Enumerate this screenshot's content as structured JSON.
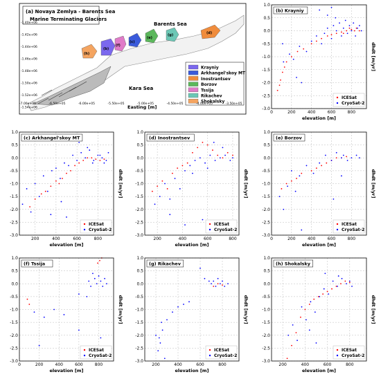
{
  "map": {
    "title_line1": "(a) Novaya Zemlya - Barents Sea",
    "title_line2": "Marine Terminating Glaciers",
    "sea_north": "Barents Sea",
    "sea_south": "Kara Sea",
    "xlabel": "Easting [m]",
    "ylabel": "Northing [m]",
    "xticks": [
      "-7.00e+05",
      "-6.50e+05",
      "-6.00e+05",
      "-5.50e+05",
      "-5.00e+05",
      "-4.50e+05",
      "-4.00e+05",
      "-3.50e+05"
    ],
    "yticks": [
      "-1.40e+06",
      "-1.42e+06",
      "-1.44e+06",
      "-1.46e+06",
      "-1.48e+06",
      "-1.50e+06",
      "-1.52e+06",
      "-1.54e+06"
    ],
    "legend": [
      {
        "name": "Krayniy",
        "color": "#7b68ee"
      },
      {
        "name": "Arkhangel'skoy MT",
        "color": "#3b5bdb"
      },
      {
        "name": "Inostrantsev",
        "color": "#f08c3c"
      },
      {
        "name": "Borzov",
        "color": "#5cb85c"
      },
      {
        "name": "Tssija",
        "color": "#e07bc8"
      },
      {
        "name": "Rikachev",
        "color": "#6cc7b5"
      },
      {
        "name": "Shokalsky",
        "color": "#f4a460"
      }
    ],
    "glacier_labels": [
      "(b)",
      "(c)",
      "(d)",
      "(e)",
      "(f)",
      "(g)",
      "(h)"
    ]
  },
  "chart_data": [
    {
      "type": "scatter",
      "title": "(b) Krayniy",
      "xlabel": "elevation [m]",
      "ylabel": "dhdt [m/yr]",
      "xlim": [
        0,
        950
      ],
      "ylim": [
        -3,
        1
      ],
      "xticks": [
        0,
        200,
        400,
        600,
        800
      ],
      "yticks": [
        -3.0,
        -2.5,
        -2.0,
        -1.5,
        -1.0,
        -0.5,
        0.0,
        0.5,
        1.0
      ],
      "series": [
        {
          "name": "ICESat",
          "color": "#ff0000"
        },
        {
          "name": "CryoSat-2",
          "color": "#0000ff"
        }
      ],
      "legend": "lower right",
      "grid": true,
      "icesat": [
        [
          60,
          -2.3
        ],
        [
          80,
          -2.1
        ],
        [
          90,
          -1.9
        ],
        [
          110,
          -1.6
        ],
        [
          130,
          -1.4
        ],
        [
          150,
          -1.2
        ],
        [
          200,
          -1.0
        ],
        [
          260,
          -0.8
        ],
        [
          320,
          -0.7
        ],
        [
          400,
          -0.5
        ],
        [
          450,
          -0.4
        ],
        [
          500,
          -0.3
        ],
        [
          560,
          -0.2
        ],
        [
          600,
          -0.15
        ],
        [
          650,
          -0.1
        ],
        [
          700,
          -0.05
        ],
        [
          750,
          0.0
        ],
        [
          800,
          0.05
        ],
        [
          850,
          0.1
        ],
        [
          880,
          0.0
        ],
        [
          720,
          -0.1
        ],
        [
          780,
          0.1
        ],
        [
          830,
          0.0
        ]
      ],
      "cryosat": [
        [
          120,
          -1.2
        ],
        [
          180,
          -0.9
        ],
        [
          220,
          -1.1
        ],
        [
          280,
          -0.6
        ],
        [
          350,
          -0.8
        ],
        [
          400,
          -0.4
        ],
        [
          450,
          -0.2
        ],
        [
          500,
          -0.5
        ],
        [
          530,
          -0.1
        ],
        [
          560,
          0.1
        ],
        [
          600,
          -0.3
        ],
        [
          620,
          0.2
        ],
        [
          650,
          0.0
        ],
        [
          680,
          0.3
        ],
        [
          700,
          -0.2
        ],
        [
          720,
          0.1
        ],
        [
          740,
          0.4
        ],
        [
          760,
          -0.1
        ],
        [
          780,
          0.2
        ],
        [
          800,
          0.0
        ],
        [
          820,
          0.3
        ],
        [
          840,
          -0.2
        ],
        [
          860,
          0.1
        ],
        [
          880,
          0.2
        ],
        [
          900,
          0.0
        ],
        [
          640,
          0.5
        ],
        [
          560,
          0.6
        ],
        [
          300,
          -2.0
        ],
        [
          250,
          -1.8
        ],
        [
          110,
          -0.5
        ],
        [
          480,
          0.8
        ],
        [
          600,
          0.9
        ]
      ]
    },
    {
      "type": "scatter",
      "title": "(c) Arkhangel'skoy MT",
      "xlabel": "elevation [m]",
      "ylabel": "dhdt [m/yr]",
      "xlim": [
        50,
        950
      ],
      "ylim": [
        -3,
        1
      ],
      "xticks": [
        200,
        400,
        600,
        800
      ],
      "yticks": [
        -3.0,
        -2.5,
        -2.0,
        -1.5,
        -1.0,
        -0.5,
        0.0,
        0.5,
        1.0
      ],
      "series": [
        {
          "name": "ICESat",
          "color": "#ff0000"
        },
        {
          "name": "CryoSat-2",
          "color": "#0000ff"
        }
      ],
      "legend": "lower right",
      "grid": true,
      "icesat": [
        [
          150,
          -1.9
        ],
        [
          200,
          -1.6
        ],
        [
          260,
          -1.4
        ],
        [
          300,
          -1.3
        ],
        [
          350,
          -1.1
        ],
        [
          400,
          -0.9
        ],
        [
          430,
          -1.0
        ],
        [
          460,
          -0.8
        ],
        [
          500,
          -0.6
        ],
        [
          540,
          -0.5
        ],
        [
          580,
          -0.3
        ],
        [
          620,
          -0.2
        ],
        [
          660,
          -0.1
        ],
        [
          700,
          0.0
        ],
        [
          740,
          0.0
        ],
        [
          780,
          -0.05
        ],
        [
          820,
          -0.1
        ],
        [
          860,
          -0.05
        ]
      ],
      "cryosat": [
        [
          80,
          -1.8
        ],
        [
          120,
          -1.2
        ],
        [
          160,
          -2.1
        ],
        [
          200,
          -1.0
        ],
        [
          240,
          -1.5
        ],
        [
          280,
          -0.7
        ],
        [
          320,
          -1.3
        ],
        [
          360,
          -0.5
        ],
        [
          400,
          -0.4
        ],
        [
          440,
          -0.8
        ],
        [
          480,
          -0.2
        ],
        [
          520,
          -0.3
        ],
        [
          560,
          0.1
        ],
        [
          600,
          -0.1
        ],
        [
          640,
          0.2
        ],
        [
          680,
          0.0
        ],
        [
          720,
          0.3
        ],
        [
          760,
          -0.1
        ],
        [
          800,
          0.1
        ],
        [
          840,
          0.0
        ],
        [
          880,
          -0.1
        ],
        [
          900,
          0.2
        ],
        [
          620,
          0.6
        ],
        [
          700,
          0.4
        ],
        [
          500,
          -2.3
        ],
        [
          450,
          -1.7
        ],
        [
          350,
          -2.2
        ],
        [
          750,
          -0.2
        ],
        [
          820,
          0.1
        ],
        [
          860,
          -0.2
        ]
      ]
    },
    {
      "type": "scatter",
      "title": "(d) Inostrantsev",
      "xlabel": "elevation [m]",
      "ylabel": "dhdt [m/yr]",
      "xlim": [
        100,
        850
      ],
      "ylim": [
        -3,
        1
      ],
      "xticks": [
        200,
        400,
        600,
        800
      ],
      "yticks": [
        -3.0,
        -2.5,
        -2.0,
        -1.5,
        -1.0,
        -0.5,
        0.0,
        0.5,
        1.0
      ],
      "series": [
        {
          "name": "ICESat",
          "color": "#ff0000"
        },
        {
          "name": "CryoSat-2",
          "color": "#0000ff"
        }
      ],
      "legend": "lower right",
      "grid": true,
      "icesat": [
        [
          160,
          -1.3
        ],
        [
          200,
          -1.1
        ],
        [
          240,
          -0.9
        ],
        [
          280,
          -1.2
        ],
        [
          320,
          -0.6
        ],
        [
          360,
          -0.4
        ],
        [
          400,
          -0.3
        ],
        [
          440,
          -0.2
        ],
        [
          480,
          0.2
        ],
        [
          520,
          0.4
        ],
        [
          560,
          0.6
        ],
        [
          600,
          0.5
        ],
        [
          640,
          0.3
        ],
        [
          680,
          0.1
        ],
        [
          720,
          0.0
        ],
        [
          760,
          0.2
        ],
        [
          800,
          0.1
        ]
      ],
      "cryosat": [
        [
          180,
          -1.8
        ],
        [
          220,
          -1.5
        ],
        [
          260,
          -1.0
        ],
        [
          300,
          -1.6
        ],
        [
          340,
          -0.8
        ],
        [
          380,
          -1.2
        ],
        [
          420,
          -0.5
        ],
        [
          460,
          -0.3
        ],
        [
          500,
          -0.1
        ],
        [
          540,
          0.0
        ],
        [
          580,
          -0.2
        ],
        [
          620,
          0.1
        ],
        [
          660,
          -0.1
        ],
        [
          700,
          0.0
        ],
        [
          740,
          0.1
        ],
        [
          780,
          -0.1
        ],
        [
          800,
          0.0
        ],
        [
          560,
          -2.4
        ],
        [
          420,
          -2.6
        ],
        [
          300,
          -2.2
        ],
        [
          650,
          0.6
        ],
        [
          720,
          0.4
        ],
        [
          480,
          -0.6
        ],
        [
          600,
          -0.4
        ]
      ]
    },
    {
      "type": "scatter",
      "title": "(e) Borzov",
      "xlabel": "elevation [m]",
      "ylabel": "dhdt [m/yr]",
      "xlim": [
        0,
        950
      ],
      "ylim": [
        -3,
        1
      ],
      "xticks": [
        0,
        200,
        400,
        600,
        800
      ],
      "yticks": [
        -3.0,
        -2.5,
        -2.0,
        -1.5,
        -1.0,
        -0.5,
        0.0,
        0.5,
        1.0
      ],
      "series": [
        {
          "name": "ICESat",
          "color": "#ff0000"
        },
        {
          "name": "CryoSat-2",
          "color": "#0000ff"
        }
      ],
      "legend": "lower right",
      "grid": true,
      "icesat": [
        [
          100,
          -1.2
        ],
        [
          150,
          -1.0
        ],
        [
          200,
          -0.9
        ],
        [
          250,
          -0.8
        ],
        [
          300,
          -0.6
        ],
        [
          400,
          -0.5
        ],
        [
          450,
          -0.4
        ],
        [
          500,
          -0.3
        ],
        [
          550,
          -0.2
        ],
        [
          600,
          -0.1
        ],
        [
          650,
          0.0
        ],
        [
          700,
          0.0
        ],
        [
          750,
          0.05
        ]
      ],
      "cryosat": [
        [
          80,
          -1.5
        ],
        [
          120,
          -2.0
        ],
        [
          160,
          -1.1
        ],
        [
          200,
          -0.5
        ],
        [
          240,
          -1.3
        ],
        [
          280,
          -0.7
        ],
        [
          350,
          -0.3
        ],
        [
          420,
          -0.6
        ],
        [
          480,
          -0.2
        ],
        [
          540,
          0.1
        ],
        [
          600,
          -0.1
        ],
        [
          650,
          0.2
        ],
        [
          700,
          0.0
        ],
        [
          720,
          0.1
        ],
        [
          760,
          -0.1
        ],
        [
          800,
          0.0
        ],
        [
          850,
          0.1
        ],
        [
          880,
          0.0
        ],
        [
          620,
          -1.6
        ],
        [
          300,
          -2.8
        ],
        [
          700,
          -0.7
        ]
      ]
    },
    {
      "type": "scatter",
      "title": "(f) Tssija",
      "xlabel": "elevation [m]",
      "ylabel": "dhdt [m/yr]",
      "xlim": [
        0,
        950
      ],
      "ylim": [
        -3,
        1
      ],
      "xticks": [
        0,
        200,
        400,
        600,
        800
      ],
      "yticks": [
        -3.0,
        -2.5,
        -2.0,
        -1.5,
        -1.0,
        -0.5,
        0.0,
        0.5,
        1.0
      ],
      "series": [
        {
          "name": "ICESat",
          "color": "#ff0000"
        },
        {
          "name": "CryoSat-2",
          "color": "#0000ff"
        }
      ],
      "legend": "lower right",
      "grid": true,
      "icesat": [
        [
          80,
          -0.6
        ],
        [
          100,
          -0.8
        ],
        [
          790,
          0.8
        ],
        [
          810,
          0.9
        ],
        [
          830,
          1.0
        ]
      ],
      "cryosat": [
        [
          150,
          -1.1
        ],
        [
          250,
          -1.3
        ],
        [
          350,
          -1.0
        ],
        [
          450,
          -1.2
        ],
        [
          600,
          -0.4
        ],
        [
          700,
          0.1
        ],
        [
          720,
          -0.1
        ],
        [
          760,
          0.2
        ],
        [
          780,
          0.0
        ],
        [
          800,
          0.3
        ],
        [
          820,
          0.1
        ],
        [
          840,
          -0.1
        ],
        [
          860,
          0.2
        ],
        [
          880,
          0.0
        ],
        [
          740,
          0.4
        ],
        [
          680,
          -0.5
        ],
        [
          820,
          -2.1
        ],
        [
          200,
          -2.4
        ],
        [
          600,
          -1.8
        ]
      ]
    },
    {
      "type": "scatter",
      "title": "(g) Rikachev",
      "xlabel": "elevation [m]",
      "ylabel": "dhdt [m/yr]",
      "xlim": [
        100,
        950
      ],
      "ylim": [
        -3,
        1
      ],
      "xticks": [
        200,
        400,
        600,
        800
      ],
      "yticks": [
        -3.0,
        -2.5,
        -2.0,
        -1.5,
        -1.0,
        -0.5,
        0.0,
        0.5,
        1.0
      ],
      "series": [
        {
          "name": "ICESat",
          "color": "#ff0000"
        },
        {
          "name": "CryoSat-2",
          "color": "#0000ff"
        }
      ],
      "legend": "lower right",
      "grid": true,
      "icesat": [
        [
          720,
          -0.1
        ],
        [
          760,
          0.0
        ],
        [
          800,
          -0.05
        ]
      ],
      "cryosat": [
        [
          200,
          -2.0
        ],
        [
          220,
          -2.6
        ],
        [
          240,
          -2.3
        ],
        [
          260,
          -1.8
        ],
        [
          280,
          -2.9
        ],
        [
          300,
          -1.4
        ],
        [
          350,
          -1.1
        ],
        [
          400,
          -0.9
        ],
        [
          450,
          -0.8
        ],
        [
          500,
          -0.7
        ],
        [
          600,
          0.6
        ],
        [
          640,
          0.2
        ],
        [
          680,
          0.1
        ],
        [
          700,
          0.0
        ],
        [
          720,
          0.1
        ],
        [
          740,
          -0.1
        ],
        [
          760,
          0.2
        ],
        [
          780,
          0.0
        ],
        [
          800,
          0.1
        ],
        [
          820,
          -0.1
        ],
        [
          850,
          0.0
        ],
        [
          250,
          -1.5
        ],
        [
          230,
          -2.1
        ]
      ]
    },
    {
      "type": "scatter",
      "title": "(h) Shokalsky",
      "xlabel": "elevation [m]",
      "ylabel": "dhdt [m/yr]",
      "xlim": [
        100,
        950
      ],
      "ylim": [
        -3,
        1
      ],
      "xticks": [
        200,
        400,
        600,
        800
      ],
      "yticks": [
        -3.0,
        -2.5,
        -2.0,
        -1.5,
        -1.0,
        -0.5,
        0.0,
        0.5,
        1.0
      ],
      "series": [
        {
          "name": "ICESat",
          "color": "#ff0000"
        },
        {
          "name": "CryoSat-2",
          "color": "#0000ff"
        }
      ],
      "legend": "lower right",
      "grid": true,
      "icesat": [
        [
          240,
          -2.9
        ],
        [
          280,
          -2.4
        ],
        [
          320,
          -1.9
        ],
        [
          360,
          -1.3
        ],
        [
          400,
          -1.0
        ],
        [
          440,
          -0.8
        ],
        [
          480,
          -0.6
        ],
        [
          520,
          -0.5
        ],
        [
          560,
          -0.4
        ],
        [
          600,
          -0.3
        ],
        [
          640,
          -0.2
        ],
        [
          680,
          -0.1
        ],
        [
          720,
          0.0
        ],
        [
          760,
          0.1
        ],
        [
          800,
          0.05
        ]
      ],
      "cryosat": [
        [
          250,
          -2.0
        ],
        [
          290,
          -1.6
        ],
        [
          330,
          -2.2
        ],
        [
          370,
          -0.9
        ],
        [
          410,
          -1.4
        ],
        [
          450,
          -0.7
        ],
        [
          490,
          -1.1
        ],
        [
          530,
          -0.5
        ],
        [
          570,
          -0.2
        ],
        [
          610,
          -0.4
        ],
        [
          650,
          0.1
        ],
        [
          690,
          -0.1
        ],
        [
          730,
          0.2
        ],
        [
          770,
          0.0
        ],
        [
          800,
          0.1
        ],
        [
          820,
          -0.1
        ],
        [
          500,
          -2.3
        ],
        [
          580,
          0.4
        ],
        [
          700,
          0.3
        ],
        [
          440,
          -1.8
        ]
      ]
    }
  ]
}
